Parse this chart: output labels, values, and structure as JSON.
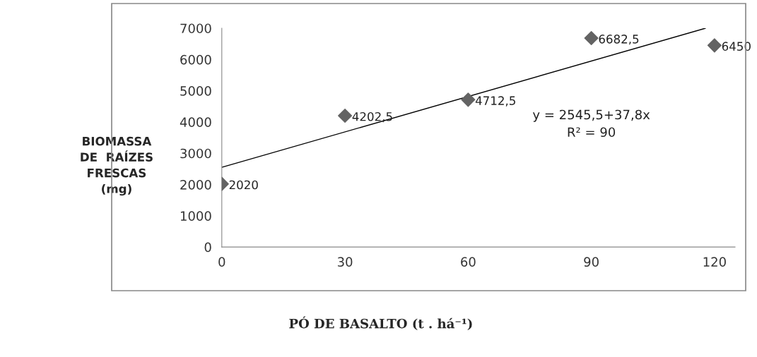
{
  "chart_data": {
    "type": "scatter",
    "xlabel": "PÓ DE BASALTO (t . há⁻¹)",
    "ylabel": "BIOMASSA\nDE  RAÍZES\nFRESCAS\n(mg)",
    "x": [
      0,
      30,
      60,
      90,
      120
    ],
    "series": [
      {
        "color": "#636363",
        "values": [
          2020,
          4202.5,
          4712.5,
          6682.5,
          6450
        ],
        "value_labels": [
          "2020",
          "4202,5",
          "4712,5",
          "6682,5",
          "6450"
        ],
        "marker": "diamond"
      },
      {
        "type": "line",
        "color": "#000000",
        "x": [
          0,
          117.8
        ],
        "values": [
          2550,
          7000
        ],
        "marker": "none",
        "line_style": "solid"
      }
    ],
    "annotations": [
      "y = 2545,5+37,8x",
      "R² = 90"
    ],
    "xlim": [
      0,
      125
    ],
    "xticks": [
      0,
      30,
      60,
      90,
      120
    ],
    "ylim": [
      0,
      7000
    ],
    "yticks": [
      0,
      1000,
      2000,
      3000,
      4000,
      5000,
      6000,
      7000
    ],
    "grid": false,
    "legend": false
  }
}
